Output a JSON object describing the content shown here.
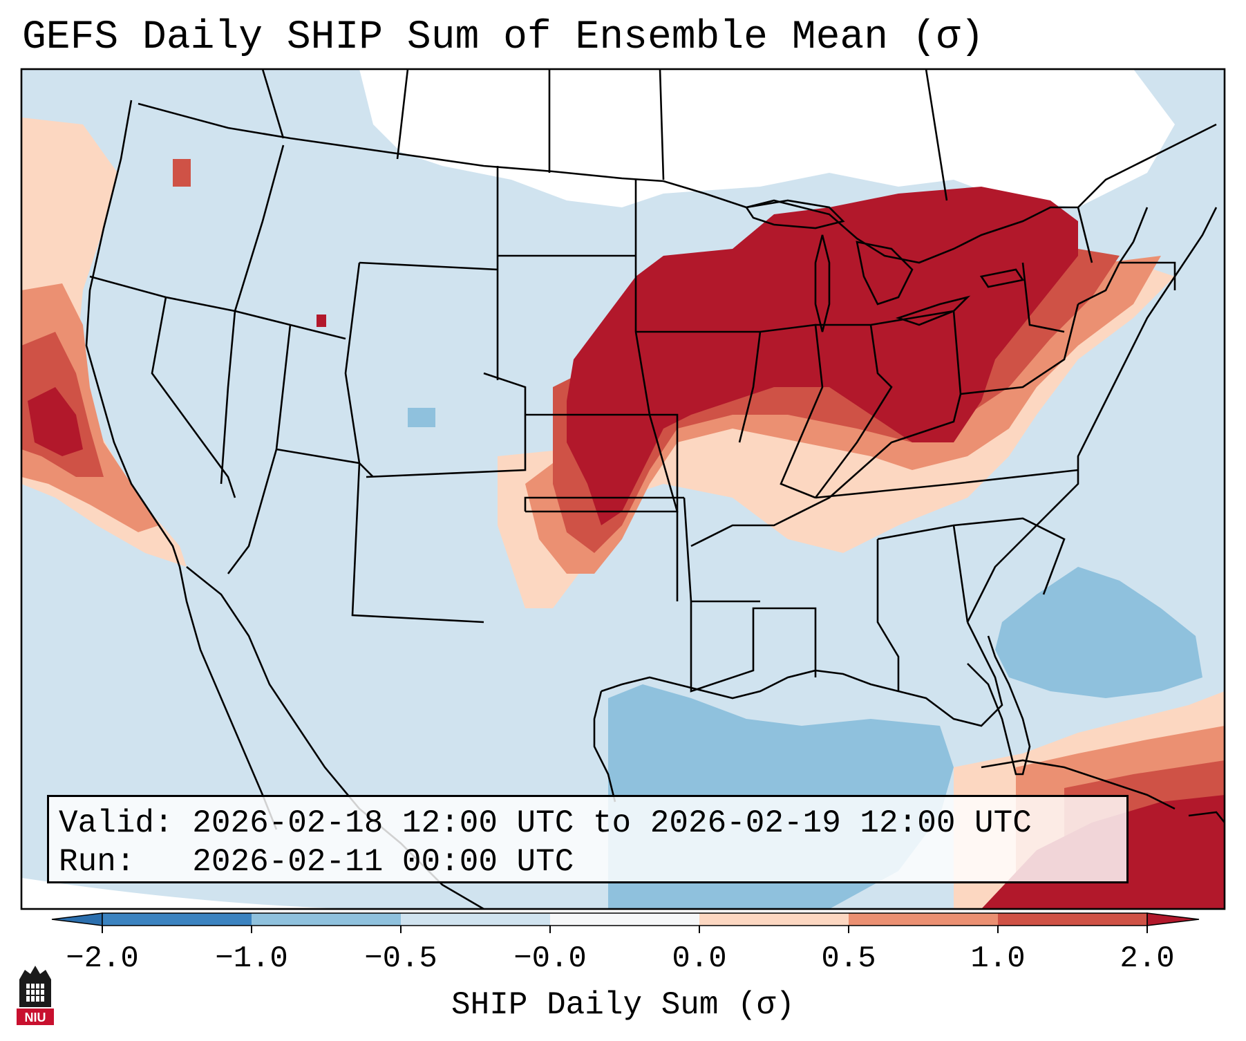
{
  "title": "GEFS Daily SHIP Sum of Ensemble Mean (σ)",
  "info": {
    "valid_label": "Valid:",
    "valid_value": "2026-02-18 12:00 UTC to 2026-02-19 12:00 UTC",
    "run_label": "Run:",
    "run_value": "2026-02-11 00:00 UTC"
  },
  "colorbar": {
    "label": "SHIP Daily Sum (σ)",
    "ticks": [
      "−2.0",
      "−1.0",
      "−0.5",
      "−0.0",
      "0.0",
      "0.5",
      "1.0",
      "2.0"
    ],
    "colors": [
      "#3b83c0",
      "#8fc1dd",
      "#d0e3ef",
      "#f6f7f8",
      "#fcd7c1",
      "#eb9072",
      "#cf5246",
      "#b2182b"
    ],
    "extend": "both"
  },
  "map": {
    "region": "CONUS",
    "ocean_color": "#d0e3ef",
    "land_color": "#d0e3ef",
    "high_color": "#b2182b",
    "mid_high_color": "#cf5246",
    "low_pos_color": "#eb9072",
    "faint_pos_color": "#fcd7c1",
    "neg_color": "#8fc1dd",
    "near_zero_color": "#ffffff"
  },
  "logo": {
    "text": "NIU"
  }
}
